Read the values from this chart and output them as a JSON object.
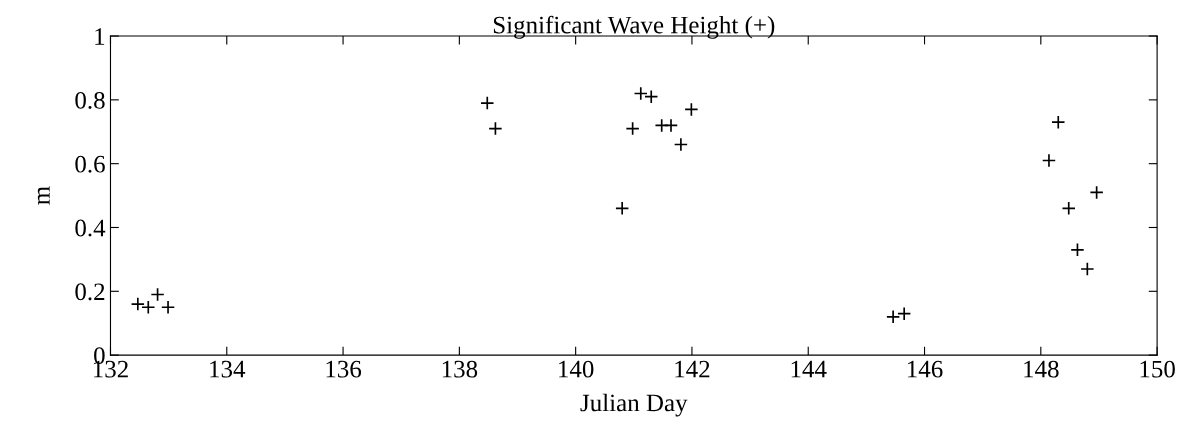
{
  "chart_data": {
    "type": "scatter",
    "title": "Significant Wave Height (+)",
    "xlabel": "Julian Day",
    "ylabel": "m",
    "x": [
      132.47,
      132.65,
      132.81,
      132.99,
      138.48,
      138.62,
      140.8,
      140.98,
      141.12,
      141.3,
      141.48,
      141.64,
      141.81,
      141.99,
      145.46,
      145.65,
      148.14,
      148.3,
      148.48,
      148.63,
      148.8,
      148.96
    ],
    "series": [
      {
        "color": "#000000",
        "values": [
          0.16,
          0.15,
          0.19,
          0.15,
          0.79,
          0.71,
          0.46,
          0.71,
          0.82,
          0.81,
          0.72,
          0.72,
          0.66,
          0.77,
          0.12,
          0.13,
          0.61,
          0.73,
          0.46,
          0.33,
          0.27,
          0.51
        ]
      }
    ],
    "marker": "cross",
    "xlim": [
      132,
      150
    ],
    "ylim": [
      0,
      1
    ],
    "xticks": [
      132,
      134,
      136,
      138,
      140,
      142,
      144,
      146,
      148,
      150
    ],
    "yticks": [
      0,
      {
        "value": 0.2,
        "label": "0.2"
      },
      {
        "value": 0.4,
        "label": "0.4"
      },
      {
        "value": 0.6,
        "label": "0.6"
      },
      {
        "value": 0.8,
        "label": "0.8"
      },
      1
    ],
    "grid": false
  }
}
